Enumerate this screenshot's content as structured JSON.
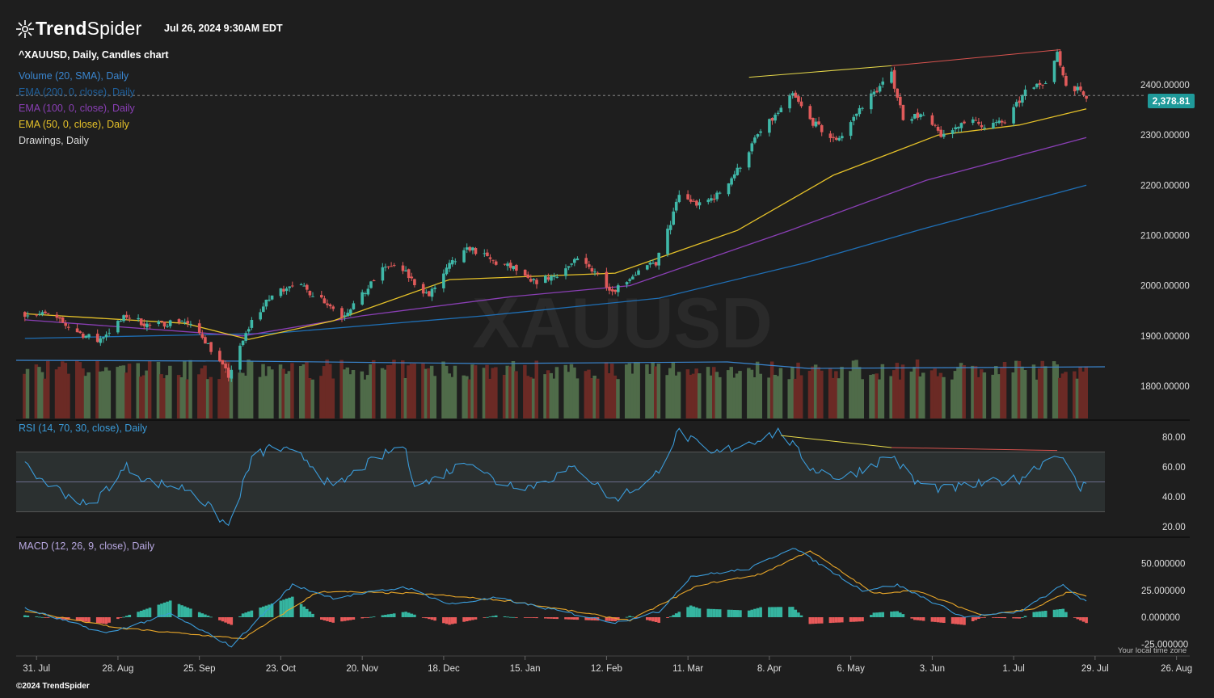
{
  "header": {
    "brand_bold": "Trend",
    "brand_light": "Spider",
    "datetime": "Jul 26, 2024 9:30AM EDT"
  },
  "legend": {
    "symbol": "^XAUUSD, Daily, Candles chart",
    "volume": "Volume (20, SMA), Daily",
    "ema200": "EMA (200, 0, close), Daily",
    "ema100": "EMA (100, 0, close), Daily",
    "ema50": "EMA (50, 0, close), Daily",
    "drawings": "Drawings, Daily",
    "rsi": "RSI (14, 70, 30, close), Daily",
    "macd": "MACD (12, 26, 9, close), Daily"
  },
  "watermark": "XAUUSD",
  "footer": {
    "copyright": "©2024 TrendSpider",
    "timezone": "Your local time zone"
  },
  "colors": {
    "background": "#1e1e1e",
    "up": "#3fb8a8",
    "down": "#e05a5a",
    "ema200": "#1f6fb5",
    "ema100": "#8a3fb5",
    "ema50": "#e6c229",
    "volume_up": "#4f6b49",
    "volume_down": "#6b2a25",
    "rsi_line": "#3a9bd9",
    "macd_line": "#3a9bd9",
    "signal_line": "#e8a629",
    "price_tag": "#1f9a9a"
  },
  "chart_data": [
    {
      "type": "candlestick",
      "title": "^XAUUSD, Daily, Candles chart",
      "last_price": "2,378.81",
      "y_ticks": [
        "2400.00000",
        "2300.00000",
        "2200.00000",
        "2100.00000",
        "2000.00000",
        "1900.00000",
        "1800.00000"
      ],
      "ylim": [
        1760,
        2470
      ],
      "x_ticks": [
        "31. Jul",
        "28. Aug",
        "25. Sep",
        "23. Oct",
        "20. Nov",
        "18. Dec",
        "15. Jan",
        "12. Feb",
        "11. Mar",
        "8. Apr",
        "6. May",
        "3. Jun",
        "1. Jul",
        "29. Jul",
        "26. Aug"
      ],
      "close_path": [
        {
          "x": "2023-07-27",
          "y": 1945
        },
        {
          "x": "2023-08-04",
          "y": 1942
        },
        {
          "x": "2023-08-15",
          "y": 1905
        },
        {
          "x": "2023-08-21",
          "y": 1890
        },
        {
          "x": "2023-08-31",
          "y": 1940
        },
        {
          "x": "2023-09-08",
          "y": 1920
        },
        {
          "x": "2023-09-19",
          "y": 1932
        },
        {
          "x": "2023-09-26",
          "y": 1900
        },
        {
          "x": "2023-10-05",
          "y": 1820
        },
        {
          "x": "2023-10-13",
          "y": 1930
        },
        {
          "x": "2023-10-20",
          "y": 1980
        },
        {
          "x": "2023-10-27",
          "y": 2006
        },
        {
          "x": "2023-11-06",
          "y": 1975
        },
        {
          "x": "2023-11-13",
          "y": 1940
        },
        {
          "x": "2023-11-20",
          "y": 1980
        },
        {
          "x": "2023-11-28",
          "y": 2040
        },
        {
          "x": "2023-12-04",
          "y": 2030
        },
        {
          "x": "2023-12-08",
          "y": 2005
        },
        {
          "x": "2023-12-13",
          "y": 1980
        },
        {
          "x": "2023-12-20",
          "y": 2040
        },
        {
          "x": "2023-12-27",
          "y": 2075
        },
        {
          "x": "2024-01-05",
          "y": 2045
        },
        {
          "x": "2024-01-11",
          "y": 2035
        },
        {
          "x": "2024-01-17",
          "y": 2005
        },
        {
          "x": "2024-01-25",
          "y": 2020
        },
        {
          "x": "2024-02-02",
          "y": 2050
        },
        {
          "x": "2024-02-08",
          "y": 2030
        },
        {
          "x": "2024-02-14",
          "y": 1990
        },
        {
          "x": "2024-02-22",
          "y": 2025
        },
        {
          "x": "2024-02-29",
          "y": 2045
        },
        {
          "x": "2024-03-05",
          "y": 2125
        },
        {
          "x": "2024-03-08",
          "y": 2180
        },
        {
          "x": "2024-03-15",
          "y": 2160
        },
        {
          "x": "2024-03-21",
          "y": 2180
        },
        {
          "x": "2024-03-28",
          "y": 2230
        },
        {
          "x": "2024-04-04",
          "y": 2300
        },
        {
          "x": "2024-04-12",
          "y": 2350
        },
        {
          "x": "2024-04-16",
          "y": 2380
        },
        {
          "x": "2024-04-22",
          "y": 2330
        },
        {
          "x": "2024-04-30",
          "y": 2290
        },
        {
          "x": "2024-05-03",
          "y": 2300
        },
        {
          "x": "2024-05-10",
          "y": 2360
        },
        {
          "x": "2024-05-20",
          "y": 2420
        },
        {
          "x": "2024-05-24",
          "y": 2335
        },
        {
          "x": "2024-05-30",
          "y": 2340
        },
        {
          "x": "2024-06-07",
          "y": 2295
        },
        {
          "x": "2024-06-14",
          "y": 2330
        },
        {
          "x": "2024-06-21",
          "y": 2320
        },
        {
          "x": "2024-06-28",
          "y": 2325
        },
        {
          "x": "2024-07-05",
          "y": 2385
        },
        {
          "x": "2024-07-12",
          "y": 2410
        },
        {
          "x": "2024-07-16",
          "y": 2460
        },
        {
          "x": "2024-07-19",
          "y": 2400
        },
        {
          "x": "2024-07-24",
          "y": 2390
        },
        {
          "x": "2024-07-26",
          "y": 2378.81
        }
      ],
      "ema50_path": [
        {
          "x": "2023-07-27",
          "y": 1944
        },
        {
          "x": "2023-09-20",
          "y": 1925
        },
        {
          "x": "2023-10-12",
          "y": 1893
        },
        {
          "x": "2023-11-10",
          "y": 1930
        },
        {
          "x": "2023-12-20",
          "y": 2012
        },
        {
          "x": "2024-02-15",
          "y": 2025
        },
        {
          "x": "2024-03-28",
          "y": 2110
        },
        {
          "x": "2024-04-30",
          "y": 2220
        },
        {
          "x": "2024-06-05",
          "y": 2300
        },
        {
          "x": "2024-07-03",
          "y": 2320
        },
        {
          "x": "2024-07-26",
          "y": 2352
        }
      ],
      "ema100_path": [
        {
          "x": "2023-07-27",
          "y": 1932
        },
        {
          "x": "2023-10-10",
          "y": 1900
        },
        {
          "x": "2023-11-20",
          "y": 1940
        },
        {
          "x": "2024-01-10",
          "y": 1978
        },
        {
          "x": "2024-02-20",
          "y": 2000
        },
        {
          "x": "2024-04-15",
          "y": 2110
        },
        {
          "x": "2024-06-01",
          "y": 2210
        },
        {
          "x": "2024-07-26",
          "y": 2295
        }
      ],
      "ema200_path": [
        {
          "x": "2023-07-27",
          "y": 1895
        },
        {
          "x": "2023-10-20",
          "y": 1905
        },
        {
          "x": "2024-01-01",
          "y": 1940
        },
        {
          "x": "2024-03-01",
          "y": 1975
        },
        {
          "x": "2024-04-20",
          "y": 2045
        },
        {
          "x": "2024-06-01",
          "y": 2115
        },
        {
          "x": "2024-07-26",
          "y": 2200
        }
      ],
      "trendlines": [
        {
          "color": "yellow",
          "from": {
            "x": "2024-04-01",
            "y": 2415
          },
          "to": {
            "x": "2024-05-20",
            "y": 2438
          }
        },
        {
          "color": "red",
          "from": {
            "x": "2024-05-20",
            "y": 2438
          },
          "to": {
            "x": "2024-07-17",
            "y": 2470
          }
        }
      ]
    },
    {
      "type": "line",
      "title": "RSI (14, 70, 30, close), Daily",
      "y_ticks": [
        "80.00",
        "60.00",
        "40.00",
        "20.00"
      ],
      "ylim": [
        15,
        88
      ],
      "bands": [
        30,
        50,
        70
      ],
      "path": [
        {
          "x": "2023-07-27",
          "y": 60
        },
        {
          "x": "2023-08-03",
          "y": 50
        },
        {
          "x": "2023-08-18",
          "y": 33
        },
        {
          "x": "2023-08-31",
          "y": 60
        },
        {
          "x": "2023-09-08",
          "y": 50
        },
        {
          "x": "2023-09-22",
          "y": 45
        },
        {
          "x": "2023-10-05",
          "y": 20
        },
        {
          "x": "2023-10-13",
          "y": 65
        },
        {
          "x": "2023-10-20",
          "y": 74
        },
        {
          "x": "2023-11-01",
          "y": 65
        },
        {
          "x": "2023-11-10",
          "y": 45
        },
        {
          "x": "2023-11-20",
          "y": 60
        },
        {
          "x": "2023-12-04",
          "y": 75
        },
        {
          "x": "2023-12-08",
          "y": 50
        },
        {
          "x": "2023-12-13",
          "y": 50
        },
        {
          "x": "2023-12-27",
          "y": 65
        },
        {
          "x": "2024-01-05",
          "y": 50
        },
        {
          "x": "2024-01-17",
          "y": 47
        },
        {
          "x": "2024-02-02",
          "y": 60
        },
        {
          "x": "2024-02-14",
          "y": 38
        },
        {
          "x": "2024-02-28",
          "y": 52
        },
        {
          "x": "2024-03-08",
          "y": 84
        },
        {
          "x": "2024-03-19",
          "y": 68
        },
        {
          "x": "2024-04-12",
          "y": 84
        },
        {
          "x": "2024-04-22",
          "y": 60
        },
        {
          "x": "2024-05-03",
          "y": 52
        },
        {
          "x": "2024-05-20",
          "y": 68
        },
        {
          "x": "2024-05-28",
          "y": 50
        },
        {
          "x": "2024-06-07",
          "y": 45
        },
        {
          "x": "2024-07-03",
          "y": 52
        },
        {
          "x": "2024-07-16",
          "y": 70
        },
        {
          "x": "2024-07-24",
          "y": 45
        },
        {
          "x": "2024-07-26",
          "y": 50
        }
      ],
      "trendlines": [
        {
          "color": "yellow",
          "from": {
            "x": "2024-04-12",
            "y": 81
          },
          "to": {
            "x": "2024-05-20",
            "y": 73
          }
        },
        {
          "color": "red",
          "from": {
            "x": "2024-05-20",
            "y": 73
          },
          "to": {
            "x": "2024-07-16",
            "y": 71
          }
        }
      ]
    },
    {
      "type": "line",
      "title": "MACD (12, 26, 9, close), Daily",
      "y_ticks": [
        "50.000000",
        "25.000000",
        "0.000000",
        "-25.000000"
      ],
      "ylim": [
        -34,
        68
      ],
      "macd_path": [
        {
          "x": "2023-07-27",
          "y": 8
        },
        {
          "x": "2023-08-24",
          "y": -15
        },
        {
          "x": "2023-09-15",
          "y": 3
        },
        {
          "x": "2023-10-06",
          "y": -27
        },
        {
          "x": "2023-10-27",
          "y": 30
        },
        {
          "x": "2023-11-10",
          "y": 18
        },
        {
          "x": "2023-12-05",
          "y": 28
        },
        {
          "x": "2023-12-20",
          "y": 12
        },
        {
          "x": "2024-01-05",
          "y": 18
        },
        {
          "x": "2024-02-15",
          "y": -5
        },
        {
          "x": "2024-03-01",
          "y": 5
        },
        {
          "x": "2024-03-12",
          "y": 38
        },
        {
          "x": "2024-04-01",
          "y": 45
        },
        {
          "x": "2024-04-16",
          "y": 65
        },
        {
          "x": "2024-05-10",
          "y": 25
        },
        {
          "x": "2024-05-22",
          "y": 30
        },
        {
          "x": "2024-06-14",
          "y": 0
        },
        {
          "x": "2024-07-03",
          "y": 5
        },
        {
          "x": "2024-07-18",
          "y": 30
        },
        {
          "x": "2024-07-26",
          "y": 14
        }
      ],
      "signal_path": [
        {
          "x": "2023-07-27",
          "y": 6
        },
        {
          "x": "2023-08-28",
          "y": -10
        },
        {
          "x": "2023-10-10",
          "y": -20
        },
        {
          "x": "2023-11-05",
          "y": 24
        },
        {
          "x": "2023-12-10",
          "y": 22
        },
        {
          "x": "2024-01-10",
          "y": 15
        },
        {
          "x": "2024-02-20",
          "y": -3
        },
        {
          "x": "2024-03-15",
          "y": 30
        },
        {
          "x": "2024-04-05",
          "y": 40
        },
        {
          "x": "2024-04-22",
          "y": 62
        },
        {
          "x": "2024-05-14",
          "y": 22
        },
        {
          "x": "2024-05-28",
          "y": 25
        },
        {
          "x": "2024-06-20",
          "y": 2
        },
        {
          "x": "2024-07-08",
          "y": 8
        },
        {
          "x": "2024-07-20",
          "y": 24
        },
        {
          "x": "2024-07-26",
          "y": 20
        }
      ]
    }
  ]
}
